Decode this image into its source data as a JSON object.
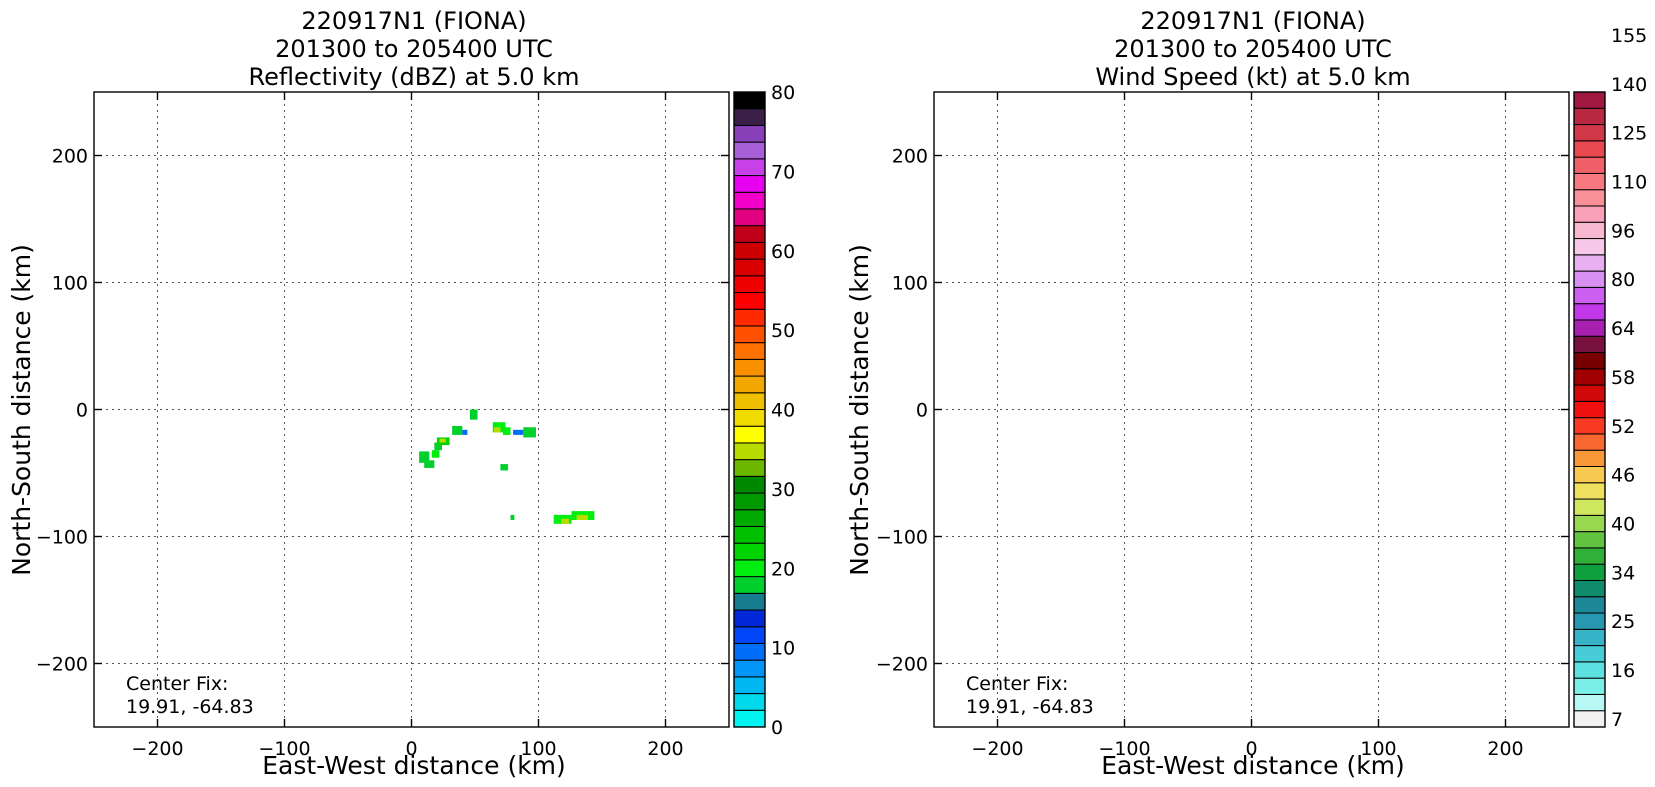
{
  "chart_data": [
    {
      "type": "heatmap",
      "title_lines": [
        "220917N1 (FIONA)",
        "201300 to 205400 UTC",
        "Reflectivity (dBZ) at 5.0 km"
      ],
      "xlabel": "East-West distance (km)",
      "ylabel": "North-South distance (km)",
      "xlim": [
        -250,
        250
      ],
      "ylim": [
        -250,
        250
      ],
      "xticks": [
        -200,
        -100,
        0,
        100,
        200
      ],
      "yticks": [
        -200,
        -100,
        0,
        100,
        200
      ],
      "grid": true,
      "annotation_lines": [
        "Center Fix:",
        "19.91, -64.83"
      ],
      "colorbar": {
        "levels": [
          0,
          2.5,
          5,
          7.5,
          10,
          12.5,
          15,
          17.5,
          20,
          22.5,
          25,
          27.5,
          30,
          32.5,
          35,
          37.5,
          40,
          42.5,
          45,
          47.5,
          50,
          52.5,
          55,
          57.5,
          60,
          62.5,
          65,
          67.5,
          70,
          72.5,
          75,
          77.5,
          80
        ],
        "colors": [
          "#00f5f0",
          "#00d8ec",
          "#00b7f2",
          "#0095f6",
          "#006ef8",
          "#0046f8",
          "#0028d8",
          "#157c8e",
          "#00d02c",
          "#00ee10",
          "#00d400",
          "#00c000",
          "#00aa00",
          "#009a00",
          "#008800",
          "#6cb800",
          "#b8dc00",
          "#ffff00",
          "#f0dc00",
          "#eec000",
          "#f2a800",
          "#f89000",
          "#ff7200",
          "#ff5000",
          "#ff2a00",
          "#ff0000",
          "#ee0000",
          "#d80000",
          "#cc0000",
          "#c00018",
          "#e00080",
          "#f000c8",
          "#e800f0",
          "#c840e8",
          "#a860d8",
          "#8840b8",
          "#3a2048",
          "#000000"
        ],
        "tick_labels": [
          "0",
          "10",
          "20",
          "30",
          "40",
          "50",
          "60",
          "70",
          "80"
        ],
        "tick_values": [
          0,
          10,
          20,
          30,
          40,
          50,
          60,
          70,
          80
        ]
      },
      "cells": [
        {
          "x": 6,
          "y": -42,
          "w": 8,
          "h": 9,
          "dbz": 22
        },
        {
          "x": 10,
          "y": -46,
          "w": 8,
          "h": 6,
          "dbz": 21
        },
        {
          "x": 16,
          "y": -38,
          "w": 6,
          "h": 6,
          "dbz": 24
        },
        {
          "x": 18,
          "y": -32,
          "w": 6,
          "h": 6,
          "dbz": 22
        },
        {
          "x": 20,
          "y": -28,
          "w": 10,
          "h": 6,
          "dbz": 25
        },
        {
          "x": 22,
          "y": -26,
          "w": 5,
          "h": 3,
          "dbz": 40
        },
        {
          "x": 32,
          "y": -20,
          "w": 8,
          "h": 7,
          "dbz": 22
        },
        {
          "x": 40,
          "y": -20,
          "w": 4,
          "h": 4,
          "dbz": 12
        },
        {
          "x": 46,
          "y": -8,
          "w": 6,
          "h": 8,
          "dbz": 22
        },
        {
          "x": 64,
          "y": -18,
          "w": 10,
          "h": 8,
          "dbz": 24
        },
        {
          "x": 65,
          "y": -18,
          "w": 5,
          "h": 4,
          "dbz": 40
        },
        {
          "x": 72,
          "y": -20,
          "w": 6,
          "h": 6,
          "dbz": 23
        },
        {
          "x": 80,
          "y": -20,
          "w": 8,
          "h": 4,
          "dbz": 12
        },
        {
          "x": 88,
          "y": -22,
          "w": 10,
          "h": 8,
          "dbz": 22
        },
        {
          "x": 70,
          "y": -48,
          "w": 6,
          "h": 5,
          "dbz": 22
        },
        {
          "x": 78,
          "y": -87,
          "w": 3,
          "h": 4,
          "dbz": 22
        },
        {
          "x": 112,
          "y": -90,
          "w": 14,
          "h": 7,
          "dbz": 23
        },
        {
          "x": 118,
          "y": -90,
          "w": 6,
          "h": 4,
          "dbz": 40
        },
        {
          "x": 126,
          "y": -87,
          "w": 18,
          "h": 7,
          "dbz": 23
        },
        {
          "x": 130,
          "y": -87,
          "w": 9,
          "h": 4,
          "dbz": 40
        }
      ]
    },
    {
      "type": "heatmap",
      "title_lines": [
        "220917N1 (FIONA)",
        "201300 to 205400 UTC",
        "Wind Speed (kt) at 5.0 km"
      ],
      "xlabel": "East-West distance (km)",
      "ylabel": "North-South distance (km)",
      "xlim": [
        -250,
        250
      ],
      "ylim": [
        -250,
        250
      ],
      "xticks": [
        -200,
        -100,
        0,
        100,
        200
      ],
      "yticks": [
        -200,
        -100,
        0,
        100,
        200
      ],
      "grid": true,
      "annotation_lines": [
        "Center Fix:",
        "19.91, -64.83"
      ],
      "colorbar": {
        "levels": [
          5,
          10,
          15,
          20,
          25,
          30,
          35,
          40,
          45,
          50,
          55,
          60,
          65,
          70,
          75,
          80,
          85,
          90,
          95,
          100,
          105,
          110,
          115,
          120,
          125,
          130,
          135,
          140,
          145,
          150,
          155,
          160,
          165,
          170,
          175,
          180,
          185,
          190,
          195,
          200,
          205,
          210,
          215,
          220,
          225
        ],
        "colors": [
          "#f2f2f2",
          "#b8f8f4",
          "#7ceee8",
          "#5ce0e0",
          "#48ccd8",
          "#38b4c8",
          "#2898b0",
          "#1c8898",
          "#108c6c",
          "#10a040",
          "#30b038",
          "#60c440",
          "#98d850",
          "#d0e860",
          "#f0e060",
          "#f8c850",
          "#f89838",
          "#f86830",
          "#f83820",
          "#f01010",
          "#d00808",
          "#a00000",
          "#780000",
          "#781040",
          "#a820b0",
          "#c038e8",
          "#cc60f0",
          "#d890f0",
          "#e8b0f0",
          "#f8c8e8",
          "#f8b8d0",
          "#f8a0b8",
          "#f89098",
          "#f87880",
          "#f06068",
          "#e84850",
          "#d03848",
          "#b82840",
          "#a01840"
        ],
        "tick_labels": [
          "7",
          "16",
          "25",
          "34",
          "40",
          "46",
          "52",
          "58",
          "64",
          "80",
          "96",
          "110",
          "125",
          "140",
          "155"
        ],
        "tick_cells": [
          0,
          3,
          6,
          9,
          12,
          15,
          18,
          21,
          24,
          27,
          30,
          33,
          36,
          39,
          42
        ]
      },
      "cells": []
    }
  ]
}
